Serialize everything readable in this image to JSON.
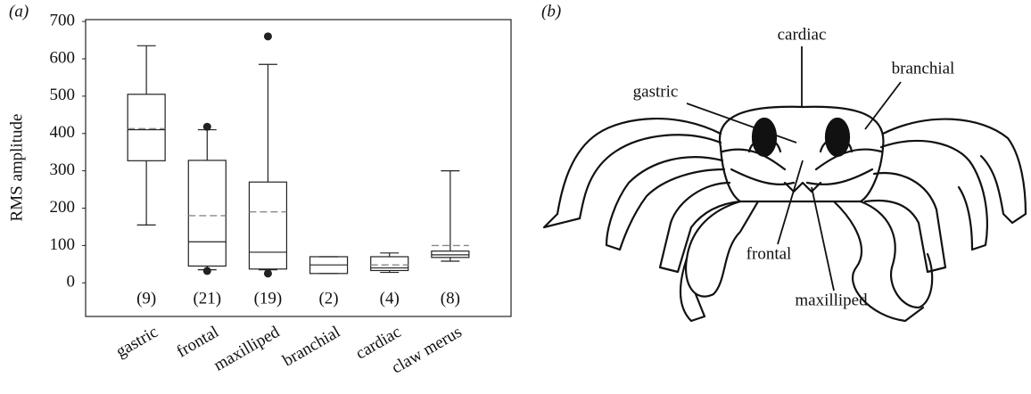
{
  "chart_data": {
    "type": "box",
    "panel_label": "(a)",
    "ylabel": "RMS amplitude",
    "categories": [
      "gastric",
      "frontal",
      "maxilliped",
      "branchial",
      "cardiac",
      "claw merus"
    ],
    "n_labels": [
      "(9)",
      "(21)",
      "(19)",
      "(2)",
      "(4)",
      "(8)"
    ],
    "whisker_low": [
      155,
      35,
      35,
      25,
      28,
      58
    ],
    "q1": [
      327,
      45,
      37,
      25,
      33,
      68
    ],
    "median": [
      410,
      110,
      82,
      48,
      40,
      75
    ],
    "mean": [
      413,
      180,
      190,
      null,
      48,
      100
    ],
    "q3": [
      505,
      328,
      270,
      70,
      70,
      85
    ],
    "whisker_high": [
      635,
      410,
      585,
      70,
      80,
      300
    ],
    "outliers": [
      [],
      [
        418,
        32
      ],
      [
        660,
        25
      ],
      [],
      [],
      []
    ],
    "color": "#222222",
    "mean_color": "#888888",
    "ylim": [
      -90,
      705
    ],
    "yticks": [
      0,
      100,
      200,
      300,
      400,
      500,
      600,
      700
    ]
  },
  "diagram": {
    "panel_label": "(b)",
    "labels": [
      "cardiac",
      "gastric",
      "branchial",
      "frontal",
      "maxilliped"
    ]
  }
}
